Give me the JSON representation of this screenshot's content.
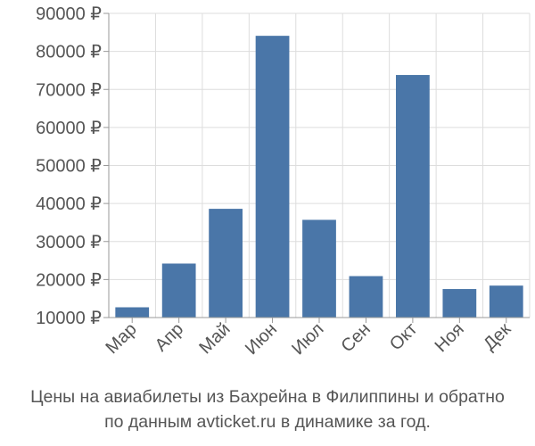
{
  "chart_data": {
    "type": "bar",
    "categories": [
      "Мар",
      "Апр",
      "Май",
      "Июн",
      "Июл",
      "Сен",
      "Окт",
      "Ноя",
      "Дек"
    ],
    "values": [
      12700,
      24200,
      38600,
      84100,
      35700,
      20900,
      73800,
      17500,
      18400
    ],
    "ylim": [
      10000,
      90000
    ],
    "yticks": [
      10000,
      20000,
      30000,
      40000,
      50000,
      60000,
      70000,
      80000,
      90000
    ],
    "ytick_labels": [
      "10000 ₽",
      "20000 ₽",
      "30000 ₽",
      "40000 ₽",
      "50000 ₽",
      "60000 ₽",
      "70000 ₽",
      "80000 ₽",
      "90000 ₽"
    ],
    "grid": true,
    "bar_color": "#4a76a8",
    "grid_color": "#dddddd"
  },
  "caption": {
    "line1": "Цены на авиабилеты из Бахрейна в Филиппины и обратно",
    "line2": "по данным avticket.ru в динамике за год."
  }
}
